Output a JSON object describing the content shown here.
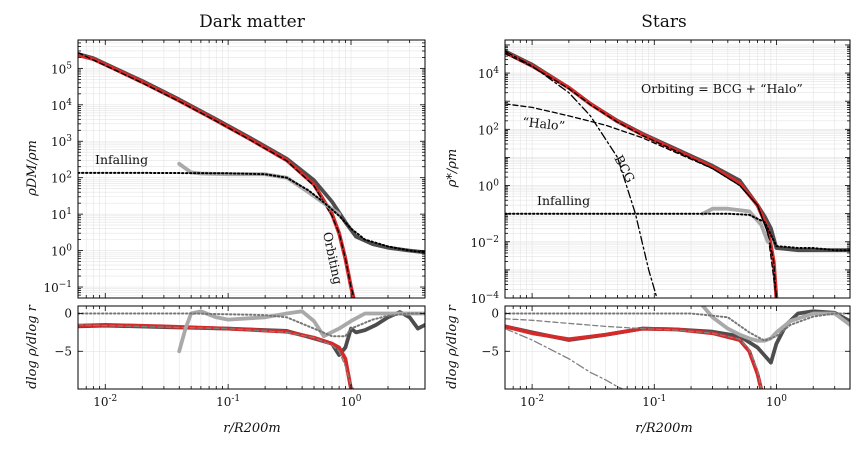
{
  "chart_data": [
    {
      "type": "line",
      "title": "Dark matter",
      "xlabel": "r/R200m",
      "ylabel": "ρDM/ρm",
      "xscale": "log",
      "yscale": "log",
      "xlim": [
        0.006,
        4
      ],
      "ylim": [
        0.05,
        600000
      ],
      "xticks": [
        "10^-2",
        "10^-1",
        "10^0"
      ],
      "yticks": [
        "10^-1",
        "10^0",
        "10^1",
        "10^2",
        "10^3",
        "10^4",
        "10^5"
      ],
      "grid": true,
      "annotations": [
        "Infalling",
        "Orbiting"
      ],
      "series": [
        {
          "style": "dark gray solid thick",
          "color": "#4d4d4d",
          "x": [
            0.006,
            0.008,
            0.012,
            0.02,
            0.04,
            0.08,
            0.15,
            0.3,
            0.5,
            0.7,
            0.9,
            1.1,
            1.5,
            2.0,
            3.0,
            4.0
          ],
          "y": [
            250000,
            190000,
            100000,
            45000,
            14000,
            4000,
            1250,
            330,
            85,
            22,
            6,
            2.4,
            1.5,
            1.2,
            1.0,
            0.9
          ]
        },
        {
          "style": "red solid thick",
          "color": "#d42a2a",
          "x": [
            0.006,
            0.008,
            0.012,
            0.02,
            0.04,
            0.08,
            0.15,
            0.3,
            0.5,
            0.7,
            0.8,
            0.9,
            1.0,
            1.05
          ],
          "y": [
            230000,
            180000,
            95000,
            42000,
            13000,
            3700,
            1150,
            300,
            65,
            10,
            3,
            0.6,
            0.1,
            0.05
          ]
        },
        {
          "style": "black dashed",
          "color": "#000000",
          "x": [
            0.006,
            0.008,
            0.012,
            0.02,
            0.04,
            0.08,
            0.15,
            0.3,
            0.5,
            0.7,
            0.8,
            0.9,
            1.0,
            1.06
          ],
          "y": [
            270000,
            170000,
            90000,
            40000,
            12500,
            3600,
            1100,
            290,
            60,
            9,
            3,
            0.6,
            0.1,
            0.05
          ]
        },
        {
          "style": "light gray solid thick",
          "color": "#a9a9a9",
          "x": [
            0.04,
            0.05,
            0.06,
            0.1,
            0.2,
            0.3,
            0.45,
            0.6,
            0.8
          ],
          "y": [
            240,
            140,
            130,
            125,
            125,
            100,
            40,
            20,
            10
          ]
        },
        {
          "style": "black dotted",
          "color": "#000000",
          "x": [
            0.006,
            0.02,
            0.05,
            0.1,
            0.2,
            0.3,
            0.45,
            0.6,
            0.8,
            1.0,
            1.3,
            2.0,
            3.0,
            4.0
          ],
          "y": [
            135,
            135,
            134,
            132,
            125,
            100,
            45,
            21,
            9,
            4,
            2,
            1.3,
            1.0,
            0.9
          ]
        }
      ]
    },
    {
      "type": "line",
      "title": "Stars",
      "xlabel": "r/R200m",
      "ylabel": "ρ*/ρm",
      "xscale": "log",
      "yscale": "log",
      "xlim": [
        0.006,
        4
      ],
      "ylim": [
        0.0001,
        150000
      ],
      "xticks": [
        "10^-2",
        "10^-1",
        "10^0"
      ],
      "yticks": [
        "10^-4",
        "10^-2",
        "10^0",
        "10^2",
        "10^4"
      ],
      "grid": true,
      "annotations": [
        "“Halo”",
        "BCG",
        "Infalling",
        "Orbiting = BCG + “Halo”"
      ],
      "series": [
        {
          "style": "dark gray solid thick",
          "color": "#4d4d4d",
          "x": [
            0.006,
            0.01,
            0.02,
            0.03,
            0.05,
            0.08,
            0.15,
            0.3,
            0.5,
            0.7,
            0.8,
            0.9,
            1.0,
            1.5,
            2.0,
            3.0,
            4.0
          ],
          "y": [
            60000,
            20000,
            3000,
            800,
            200,
            70,
            20,
            5,
            1.5,
            0.2,
            0.08,
            0.03,
            0.006,
            0.005,
            0.005,
            0.005,
            0.005
          ]
        },
        {
          "style": "red solid thick",
          "color": "#d42a2a",
          "x": [
            0.006,
            0.01,
            0.02,
            0.03,
            0.05,
            0.08,
            0.15,
            0.3,
            0.5,
            0.7,
            0.85,
            0.95,
            1.0
          ],
          "y": [
            55000,
            18000,
            3000,
            800,
            190,
            65,
            18,
            4.5,
            1.2,
            0.2,
            0.03,
            0.002,
            0.0001
          ]
        },
        {
          "style": "black dashed",
          "color": "#000000",
          "x": [
            0.006,
            0.01,
            0.02,
            0.03,
            0.05,
            0.08,
            0.15,
            0.3,
            0.5,
            0.7,
            0.85,
            0.95,
            1.0
          ],
          "y": [
            50000,
            17000,
            2800,
            750,
            180,
            60,
            17,
            4,
            1.0,
            0.2,
            0.02,
            0.002,
            0.0001
          ]
        },
        {
          "style": "black dash-dot",
          "color": "#000000",
          "x": [
            0.006,
            0.01,
            0.02,
            0.03,
            0.05,
            0.07,
            0.09,
            0.105
          ],
          "y": [
            60000,
            18000,
            2000,
            300,
            10,
            0.1,
            0.001,
            0.0001
          ]
        },
        {
          "style": "black dashed (Halo)",
          "color": "#000000",
          "x": [
            0.006,
            0.01,
            0.02,
            0.04,
            0.08,
            0.15,
            0.3,
            0.5,
            0.7,
            0.85,
            1.0
          ],
          "y": [
            800,
            600,
            300,
            140,
            50,
            15,
            4,
            1.0,
            0.2,
            0.02,
            0.0001
          ]
        },
        {
          "style": "light gray solid thick",
          "color": "#a9a9a9",
          "x": [
            0.25,
            0.3,
            0.4,
            0.6,
            0.75,
            0.85
          ],
          "y": [
            0.1,
            0.15,
            0.15,
            0.12,
            0.04,
            0.01
          ]
        },
        {
          "style": "black dotted",
          "color": "#000000",
          "x": [
            0.006,
            0.02,
            0.05,
            0.1,
            0.2,
            0.4,
            0.6,
            0.8,
            1.0,
            1.5,
            2.0,
            3.0,
            4.0
          ],
          "y": [
            0.1,
            0.1,
            0.1,
            0.1,
            0.1,
            0.1,
            0.09,
            0.05,
            0.007,
            0.006,
            0.006,
            0.005,
            0.005
          ]
        }
      ]
    },
    {
      "type": "line",
      "xlabel": "r/R200m",
      "ylabel": "dlog ρ/dlog r",
      "xscale": "log",
      "xlim": [
        0.006,
        4
      ],
      "ylim": [
        -10,
        1
      ],
      "yticks": [
        "0",
        "−5"
      ],
      "series": [
        {
          "style": "dark gray solid thick",
          "color": "#4d4d4d",
          "x": [
            0.006,
            0.01,
            0.03,
            0.1,
            0.3,
            0.5,
            0.7,
            0.8,
            0.9,
            1.0,
            1.1,
            1.3,
            1.6,
            2.0,
            2.5,
            3.0,
            3.5,
            4.0
          ],
          "y": [
            -1.7,
            -1.6,
            -1.8,
            -2,
            -2.3,
            -3.3,
            -4,
            -5.5,
            -4.5,
            -2,
            -2.5,
            -2.2,
            -1.5,
            -0.5,
            0.2,
            -0.5,
            -2,
            -1.5
          ]
        },
        {
          "style": "red solid thick",
          "color": "#d42a2a",
          "x": [
            0.006,
            0.01,
            0.03,
            0.1,
            0.3,
            0.5,
            0.7,
            0.8,
            0.9,
            1.0
          ],
          "y": [
            -1.6,
            -1.5,
            -1.7,
            -2,
            -2.4,
            -3.2,
            -4,
            -4.5,
            -6,
            -10
          ]
        },
        {
          "style": "gray dashed",
          "color": "#808080",
          "x": [
            0.006,
            0.01,
            0.03,
            0.1,
            0.3,
            0.5,
            0.7,
            0.8,
            0.9,
            1.0,
            1.05
          ],
          "y": [
            -1.5,
            -1.6,
            -1.8,
            -2,
            -2.5,
            -3.2,
            -4.2,
            -5,
            -7,
            -9.5,
            -10
          ]
        },
        {
          "style": "light gray solid thick",
          "color": "#a9a9a9",
          "x": [
            0.04,
            0.045,
            0.05,
            0.06,
            0.08,
            0.1,
            0.2,
            0.3,
            0.4,
            0.5,
            0.6,
            0.8,
            1.0,
            1.3,
            2.0,
            3.0,
            4.0
          ],
          "y": [
            -5,
            -2,
            0,
            0.3,
            -0.5,
            -0.8,
            -0.5,
            0,
            0.3,
            -1,
            -3,
            -2,
            -1,
            0,
            0,
            0,
            0
          ]
        },
        {
          "style": "gray dotted",
          "color": "#777777",
          "x": [
            0.006,
            0.05,
            0.1,
            0.2,
            0.3,
            0.5,
            0.7,
            0.9,
            1.0,
            1.5,
            2.0,
            3.0,
            4.0
          ],
          "y": [
            0,
            0,
            -0.1,
            -0.2,
            -0.5,
            -2,
            -3,
            -3,
            -2,
            -0.8,
            -0.3,
            0,
            0
          ]
        }
      ]
    },
    {
      "type": "line",
      "xlabel": "r/R200m",
      "ylabel": "dlog ρ/dlog r",
      "xscale": "log",
      "xlim": [
        0.006,
        4
      ],
      "ylim": [
        -10,
        1
      ],
      "yticks": [
        "0",
        "−5"
      ],
      "series": [
        {
          "style": "dark gray solid thick",
          "color": "#4d4d4d",
          "x": [
            0.006,
            0.01,
            0.02,
            0.04,
            0.08,
            0.15,
            0.3,
            0.5,
            0.7,
            0.9,
            1.0,
            1.2,
            1.5,
            2.0,
            3.0,
            4.0
          ],
          "y": [
            -1.7,
            -2.5,
            -3.5,
            -2.8,
            -2,
            -2.1,
            -2.4,
            -3,
            -4.5,
            -6.5,
            -4,
            -1.5,
            0,
            0.3,
            0.1,
            -1
          ]
        },
        {
          "style": "red solid thick",
          "color": "#d42a2a",
          "x": [
            0.006,
            0.01,
            0.02,
            0.04,
            0.08,
            0.15,
            0.3,
            0.5,
            0.6,
            0.7,
            0.75
          ],
          "y": [
            -1.7,
            -2.6,
            -3.4,
            -2.8,
            -2,
            -2.1,
            -2.6,
            -3.5,
            -5,
            -8,
            -10
          ]
        },
        {
          "style": "gray dashed",
          "color": "#808080",
          "x": [
            0.006,
            0.01,
            0.02,
            0.04,
            0.08,
            0.15,
            0.3,
            0.5,
            0.6,
            0.7,
            0.75
          ],
          "y": [
            -0.7,
            -0.9,
            -1.3,
            -1.7,
            -2,
            -2.2,
            -2.6,
            -3.4,
            -4.8,
            -7.5,
            -10
          ]
        },
        {
          "style": "gray dash-dot",
          "color": "#808080",
          "x": [
            0.006,
            0.01,
            0.02,
            0.03,
            0.04,
            0.05,
            0.055
          ],
          "y": [
            -2,
            -3.5,
            -6,
            -7.8,
            -8.8,
            -9.7,
            -10
          ]
        },
        {
          "style": "light gray solid thick",
          "color": "#a9a9a9",
          "x": [
            0.25,
            0.3,
            0.4,
            0.5,
            0.6,
            0.7,
            0.8,
            0.9,
            1.0,
            1.3,
            2.0,
            3.0,
            4.0
          ],
          "y": [
            1,
            -0.5,
            -2,
            -2.8,
            -3.3,
            -3.6,
            -3.6,
            -3.3,
            -2.5,
            -1,
            0,
            0,
            -1.5
          ]
        },
        {
          "style": "gray dotted",
          "color": "#777777",
          "x": [
            0.006,
            0.1,
            0.2,
            0.4,
            0.6,
            0.8,
            1.0,
            1.3,
            2.0,
            3.0,
            4.0
          ],
          "y": [
            0,
            0,
            0,
            -0.5,
            -2.5,
            -3.6,
            -3.0,
            -1.5,
            -0.4,
            0,
            0
          ]
        }
      ]
    }
  ]
}
